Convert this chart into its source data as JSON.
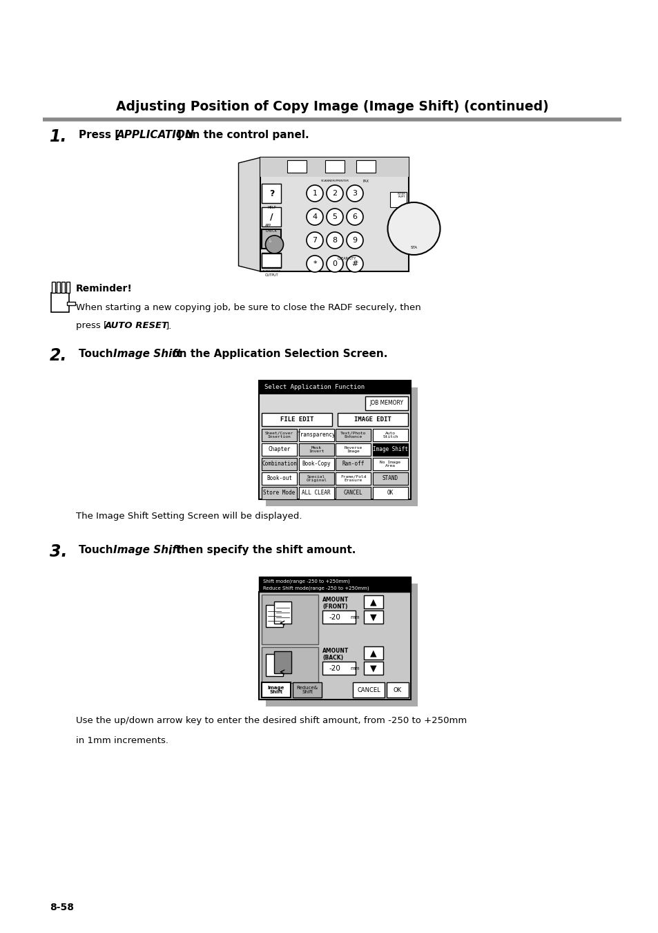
{
  "bg_color": "#ffffff",
  "page_width": 9.54,
  "page_height": 13.51,
  "title": "Adjusting Position of Copy Image (Image Shift) (continued)",
  "title_fontsize": 13.5,
  "reminder_bold": "Reminder!",
  "step2_note": "The Image Shift Setting Screen will be displayed.",
  "step3_note1": "Use the up/down arrow key to enter the desired shift amount, from -250 to +250mm",
  "step3_note2": "in 1mm increments.",
  "page_num": "8-58",
  "ml": 0.72,
  "mr": 8.9
}
